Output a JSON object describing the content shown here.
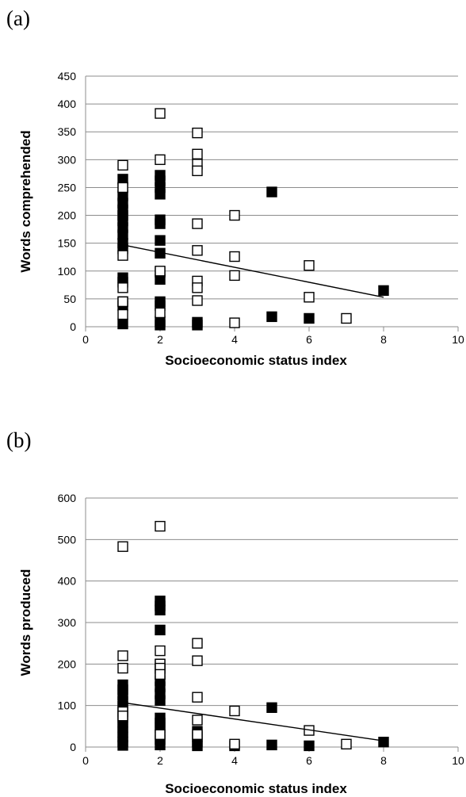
{
  "chart_data": [
    {
      "panel_label": "(a)",
      "type": "scatter",
      "xlabel": "Socioeconomic status index",
      "ylabel": "Words comprehended",
      "xlim": [
        0,
        10
      ],
      "ylim": [
        0,
        450
      ],
      "xticks": [
        0,
        2,
        4,
        6,
        8,
        10
      ],
      "yticks": [
        0,
        50,
        100,
        150,
        200,
        250,
        300,
        350,
        400,
        450
      ],
      "grid": "horizontal",
      "series": [
        {
          "marker": "filled-square",
          "color": "#000000",
          "points": [
            [
              1,
              265
            ],
            [
              1,
              250
            ],
            [
              1,
              235
            ],
            [
              1,
              222
            ],
            [
              1,
              210
            ],
            [
              1,
              200
            ],
            [
              1,
              190
            ],
            [
              1,
              178
            ],
            [
              1,
              165
            ],
            [
              1,
              150
            ],
            [
              1,
              140
            ],
            [
              1,
              88
            ],
            [
              1,
              80
            ],
            [
              1,
              45
            ],
            [
              1,
              38
            ],
            [
              1,
              5
            ],
            [
              2,
              272
            ],
            [
              2,
              262
            ],
            [
              2,
              250
            ],
            [
              2,
              238
            ],
            [
              2,
              192
            ],
            [
              2,
              185
            ],
            [
              2,
              155
            ],
            [
              2,
              132
            ],
            [
              2,
              98
            ],
            [
              2,
              85
            ],
            [
              2,
              45
            ],
            [
              2,
              38
            ],
            [
              2,
              10
            ],
            [
              2,
              3
            ],
            [
              3,
              8
            ],
            [
              3,
              3
            ],
            [
              5,
              242
            ],
            [
              5,
              18
            ],
            [
              6,
              15
            ],
            [
              8,
              65
            ]
          ]
        },
        {
          "marker": "open-square",
          "color": "#000000",
          "points": [
            [
              1,
              290
            ],
            [
              1,
              250
            ],
            [
              1,
              128
            ],
            [
              1,
              70
            ],
            [
              1,
              45
            ],
            [
              1,
              22
            ],
            [
              2,
              383
            ],
            [
              2,
              300
            ],
            [
              2,
              100
            ],
            [
              2,
              25
            ],
            [
              3,
              348
            ],
            [
              3,
              310
            ],
            [
              3,
              292
            ],
            [
              3,
              280
            ],
            [
              3,
              185
            ],
            [
              3,
              137
            ],
            [
              3,
              82
            ],
            [
              3,
              70
            ],
            [
              3,
              47
            ],
            [
              4,
              200
            ],
            [
              4,
              126
            ],
            [
              4,
              92
            ],
            [
              4,
              7
            ],
            [
              6,
              110
            ],
            [
              6,
              53
            ],
            [
              7,
              15
            ]
          ]
        }
      ],
      "trendline": [
        [
          1,
          147
        ],
        [
          8,
          53
        ]
      ]
    },
    {
      "panel_label": "(b)",
      "type": "scatter",
      "xlabel": "Socioeconomic status index",
      "ylabel": "Words produced",
      "xlim": [
        0,
        10
      ],
      "ylim": [
        0,
        600
      ],
      "xticks": [
        0,
        2,
        4,
        6,
        8,
        10
      ],
      "yticks": [
        0,
        100,
        200,
        300,
        400,
        500,
        600
      ],
      "grid": "horizontal",
      "series": [
        {
          "marker": "filled-square",
          "color": "#000000",
          "points": [
            [
              1,
              150
            ],
            [
              1,
              138
            ],
            [
              1,
              125
            ],
            [
              1,
              110
            ],
            [
              1,
              98
            ],
            [
              1,
              85
            ],
            [
              1,
              72
            ],
            [
              1,
              60
            ],
            [
              1,
              48
            ],
            [
              1,
              36
            ],
            [
              1,
              24
            ],
            [
              1,
              12
            ],
            [
              1,
              4
            ],
            [
              2,
              352
            ],
            [
              2,
              340
            ],
            [
              2,
              330
            ],
            [
              2,
              282
            ],
            [
              2,
              200
            ],
            [
              2,
              188
            ],
            [
              2,
              175
            ],
            [
              2,
              160
            ],
            [
              2,
              145
            ],
            [
              2,
              128
            ],
            [
              2,
              112
            ],
            [
              2,
              70
            ],
            [
              2,
              58
            ],
            [
              2,
              45
            ],
            [
              2,
              32
            ],
            [
              2,
              18
            ],
            [
              2,
              5
            ],
            [
              3,
              38
            ],
            [
              3,
              25
            ],
            [
              3,
              12
            ],
            [
              3,
              3
            ],
            [
              4,
              3
            ],
            [
              5,
              95
            ],
            [
              5,
              5
            ],
            [
              6,
              3
            ],
            [
              8,
              12
            ]
          ]
        },
        {
          "marker": "open-square",
          "color": "#000000",
          "points": [
            [
              1,
              483
            ],
            [
              1,
              220
            ],
            [
              1,
              190
            ],
            [
              1,
              85
            ],
            [
              1,
              75
            ],
            [
              2,
              532
            ],
            [
              2,
              232
            ],
            [
              2,
              200
            ],
            [
              2,
              190
            ],
            [
              2,
              175
            ],
            [
              2,
              30
            ],
            [
              3,
              250
            ],
            [
              3,
              208
            ],
            [
              3,
              120
            ],
            [
              3,
              65
            ],
            [
              3,
              30
            ],
            [
              4,
              87
            ],
            [
              4,
              7
            ],
            [
              6,
              40
            ],
            [
              7,
              7
            ]
          ]
        }
      ],
      "trendline": [
        [
          1,
          107
        ],
        [
          8,
          15
        ]
      ]
    }
  ]
}
